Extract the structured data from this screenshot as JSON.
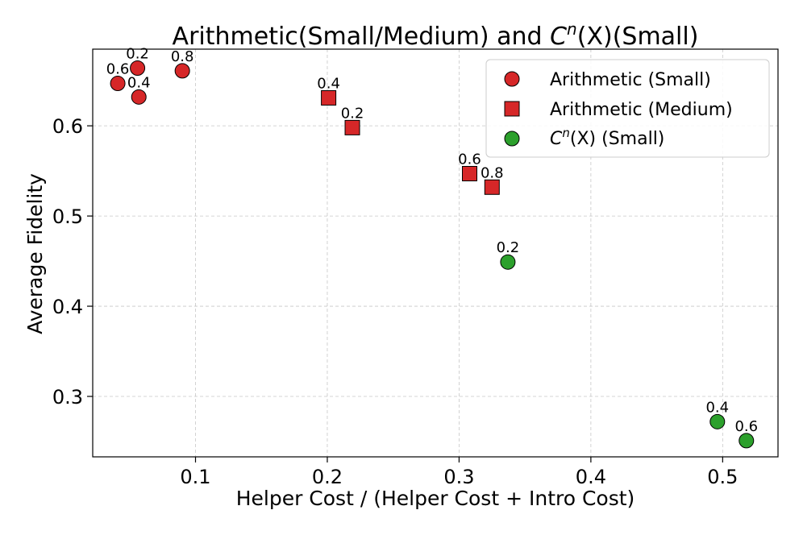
{
  "chart_data": {
    "type": "scatter",
    "title": "Arithmetic(Small/Medium) and C^n(X)(Small)",
    "title_parts": {
      "prefix": "Arithmetic(Small/Medium) and ",
      "c": "C",
      "n": "n",
      "x": "(X)",
      "suffix": "(Small)"
    },
    "xlabel": "Helper Cost / (Helper Cost + Intro Cost)",
    "ylabel": "Average Fidelity",
    "xlim": [
      0.022,
      0.542
    ],
    "ylim": [
      0.233,
      0.685
    ],
    "xticks": [
      0.1,
      0.2,
      0.3,
      0.4,
      0.5
    ],
    "xtick_labels": [
      "0.1",
      "0.2",
      "0.3",
      "0.4",
      "0.5"
    ],
    "yticks": [
      0.3,
      0.4,
      0.5,
      0.6
    ],
    "ytick_labels": [
      "0.3",
      "0.4",
      "0.5",
      "0.6"
    ],
    "grid": true,
    "legend_position": "top-right",
    "series": [
      {
        "name": "Arithmetic (Small)",
        "marker": "circle",
        "color": "#d62728",
        "points": [
          {
            "x": 0.056,
            "y": 0.664,
            "label": "0.2"
          },
          {
            "x": 0.057,
            "y": 0.632,
            "label": "0.4"
          },
          {
            "x": 0.041,
            "y": 0.647,
            "label": "0.6"
          },
          {
            "x": 0.09,
            "y": 0.661,
            "label": "0.8"
          }
        ]
      },
      {
        "name": "Arithmetic (Medium)",
        "marker": "square",
        "color": "#d62728",
        "points": [
          {
            "x": 0.219,
            "y": 0.598,
            "label": "0.2"
          },
          {
            "x": 0.201,
            "y": 0.631,
            "label": "0.4"
          },
          {
            "x": 0.308,
            "y": 0.547,
            "label": "0.6"
          },
          {
            "x": 0.325,
            "y": 0.532,
            "label": "0.8"
          }
        ]
      },
      {
        "name": "C^n(X) (Small)",
        "marker": "circle",
        "color": "#2ca02c",
        "points": [
          {
            "x": 0.337,
            "y": 0.449,
            "label": "0.2"
          },
          {
            "x": 0.496,
            "y": 0.272,
            "label": "0.4"
          },
          {
            "x": 0.518,
            "y": 0.251,
            "label": "0.6"
          }
        ]
      }
    ],
    "legend_entries": [
      {
        "text": "Arithmetic (Small)"
      },
      {
        "text": "Arithmetic (Medium)"
      },
      {
        "c": "C",
        "n": "n",
        "rest": "(X) (Small)"
      }
    ]
  }
}
